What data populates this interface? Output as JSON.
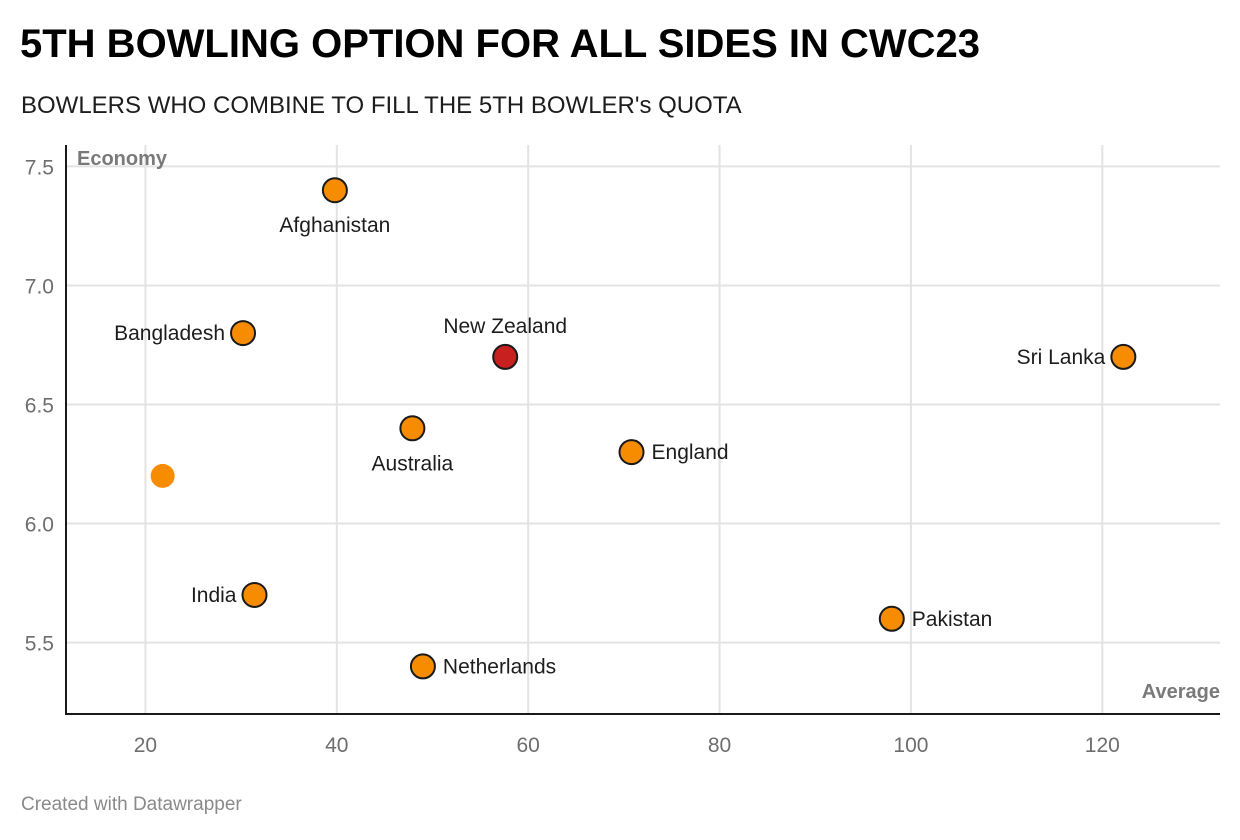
{
  "header": {
    "title": "5TH BOWLING OPTION FOR ALL SIDES IN CWC23",
    "subtitle": "BOWLERS WHO COMBINE TO FILL THE 5TH BOWLER's QUOTA"
  },
  "footer": {
    "credit": "Created with Datawrapper"
  },
  "colors": {
    "default": "#f78c00",
    "highlight": "#c8201e",
    "stroke": "#1a1a1a",
    "grid": "#e3e3e3"
  },
  "chart_data": {
    "type": "scatter",
    "title": "5TH BOWLING OPTION FOR ALL SIDES IN CWC23",
    "subtitle": "BOWLERS WHO COMBINE TO FILL THE 5TH BOWLER's QUOTA",
    "xlabel": "Average",
    "ylabel": "Economy",
    "xlim": [
      11.7,
      132.3
    ],
    "ylim": [
      5.2,
      7.59
    ],
    "xticks": [
      20,
      40,
      60,
      80,
      100,
      120
    ],
    "xtick_labels": [
      "20",
      "40",
      "60",
      "80",
      "100",
      "120"
    ],
    "yticks": [
      5.5,
      6.0,
      6.5,
      7.0,
      7.5
    ],
    "ytick_labels": [
      "5.5",
      "6.0",
      "6.5",
      "7.0",
      "7.5"
    ],
    "grid": true,
    "points": [
      {
        "label": "Afghanistan",
        "x": 39.8,
        "y": 7.4,
        "label_pos": "bottom",
        "highlight": false,
        "outlined": true
      },
      {
        "label": "Bangladesh",
        "x": 30.2,
        "y": 6.8,
        "label_pos": "left",
        "highlight": false,
        "outlined": true
      },
      {
        "label": "New Zealand",
        "x": 57.6,
        "y": 6.7,
        "label_pos": "top",
        "highlight": true,
        "outlined": true
      },
      {
        "label": "Sri Lanka",
        "x": 122.2,
        "y": 6.7,
        "label_pos": "left",
        "highlight": false,
        "outlined": true
      },
      {
        "label": "Australia",
        "x": 47.9,
        "y": 6.4,
        "label_pos": "bottom",
        "highlight": false,
        "outlined": true
      },
      {
        "label": "England",
        "x": 70.8,
        "y": 6.3,
        "label_pos": "right",
        "highlight": false,
        "outlined": true
      },
      {
        "label": "",
        "x": 21.8,
        "y": 6.2,
        "label_pos": "none",
        "highlight": false,
        "outlined": false
      },
      {
        "label": "India",
        "x": 31.4,
        "y": 5.7,
        "label_pos": "left",
        "highlight": false,
        "outlined": true
      },
      {
        "label": "Pakistan",
        "x": 98.0,
        "y": 5.6,
        "label_pos": "right",
        "highlight": false,
        "outlined": true
      },
      {
        "label": "Netherlands",
        "x": 49.0,
        "y": 5.4,
        "label_pos": "right",
        "highlight": false,
        "outlined": true
      }
    ]
  }
}
